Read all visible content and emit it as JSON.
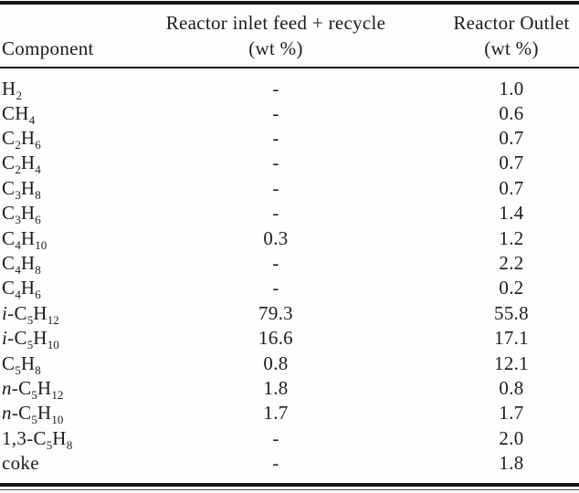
{
  "page": {
    "background": "#fefefe",
    "rule_color": "#161616",
    "text_color": "#1c1c1c"
  },
  "table": {
    "header": {
      "component": "Component",
      "inlet_title": "Reactor inlet feed + recycle",
      "inlet_unit": "(wt %)",
      "outlet_title": "Reactor Outlet",
      "outlet_unit": "(wt %)"
    },
    "rows": [
      {
        "prefix": "",
        "formula": "H_2",
        "inlet": "-",
        "outlet": "1.0"
      },
      {
        "prefix": "",
        "formula": "CH_4",
        "inlet": "-",
        "outlet": "0.6"
      },
      {
        "prefix": "",
        "formula": "C_2H_6",
        "inlet": "-",
        "outlet": "0.7"
      },
      {
        "prefix": "",
        "formula": "C_2H_4",
        "inlet": "-",
        "outlet": "0.7"
      },
      {
        "prefix": "",
        "formula": "C_3H_8",
        "inlet": "-",
        "outlet": "0.7"
      },
      {
        "prefix": "",
        "formula": "C_3H_6",
        "inlet": "-",
        "outlet": "1.4"
      },
      {
        "prefix": "",
        "formula": "C_4H_10",
        "inlet": "0.3",
        "outlet": "1.2"
      },
      {
        "prefix": "",
        "formula": "C_4H_8",
        "inlet": "-",
        "outlet": "2.2"
      },
      {
        "prefix": "",
        "formula": "C_4H_6",
        "inlet": "-",
        "outlet": "0.2"
      },
      {
        "prefix": "i-",
        "formula": "C_5H_12",
        "inlet": "79.3",
        "outlet": "55.8"
      },
      {
        "prefix": "i-",
        "formula": "C_5H_10",
        "inlet": "16.6",
        "outlet": "17.1"
      },
      {
        "prefix": "",
        "formula": "C_5H_8",
        "inlet": "0.8",
        "outlet": "12.1"
      },
      {
        "prefix": "n-",
        "formula": "C_5H_12",
        "inlet": "1.8",
        "outlet": "0.8"
      },
      {
        "prefix": "n-",
        "formula": "C_5H_10",
        "inlet": "1.7",
        "outlet": "1.7"
      },
      {
        "prefix": "",
        "formula": "1,3-C_5H_8",
        "inlet": "-",
        "outlet": "2.0"
      },
      {
        "prefix": "",
        "formula": "coke",
        "inlet": "-",
        "outlet": "1.8"
      }
    ]
  }
}
